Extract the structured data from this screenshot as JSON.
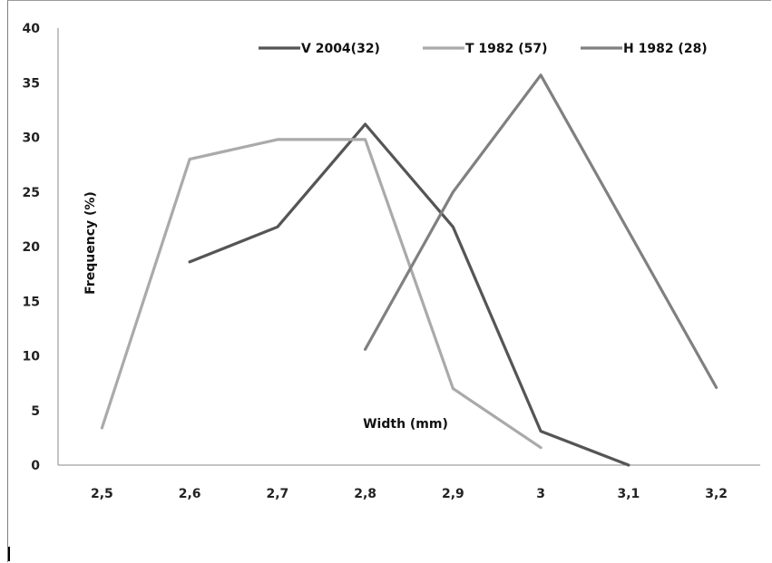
{
  "chart_data": {
    "type": "line",
    "title": "",
    "xlabel": "Width (mm)",
    "ylabel": "Frequency (%)",
    "categories": [
      "2,5",
      "2,6",
      "2,7",
      "2,8",
      "2,9",
      "3",
      "3,1",
      "3,2"
    ],
    "ylim": [
      0,
      40
    ],
    "yticks": [
      "0",
      "5",
      "10",
      "15",
      "20",
      "25",
      "30",
      "35",
      "40"
    ],
    "grid": false,
    "legend_position": "top",
    "series": [
      {
        "name": "V 2004(32)",
        "color": "#555555",
        "values": [
          null,
          18.6,
          21.8,
          31.2,
          21.8,
          3.1,
          0,
          null
        ]
      },
      {
        "name": "T 1982 (57)",
        "color": "#aaaaaa",
        "values": [
          3.4,
          28.0,
          29.8,
          29.8,
          7.0,
          1.6,
          null,
          null
        ]
      },
      {
        "name": "H 1982 (28)",
        "color": "#808080",
        "values": [
          null,
          null,
          null,
          10.6,
          25.0,
          35.7,
          21.4,
          7.1
        ]
      }
    ]
  }
}
